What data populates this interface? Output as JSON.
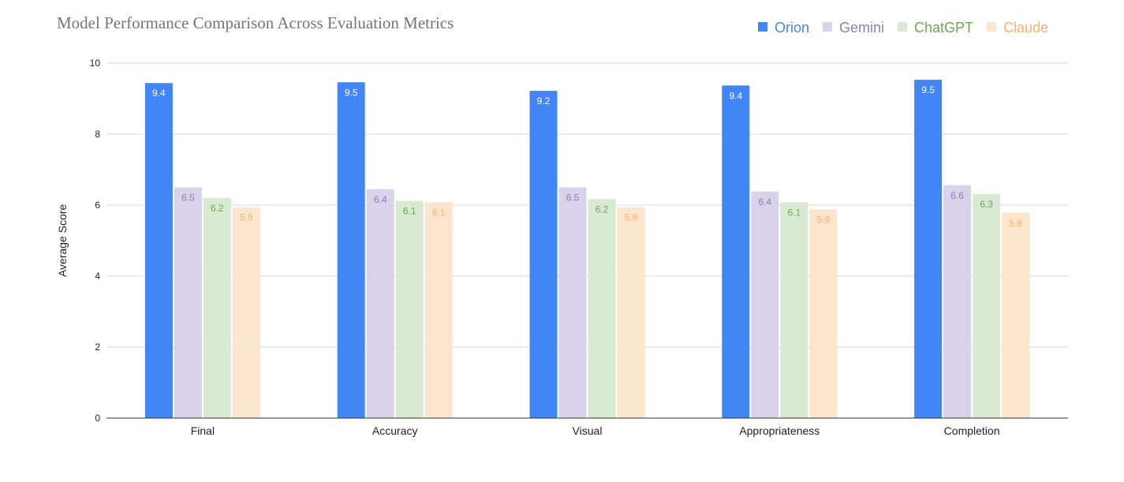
{
  "chart_data": {
    "type": "bar",
    "title": "Model Performance Comparison Across Evaluation Metrics",
    "xlabel": "",
    "ylabel": "Average Score",
    "ylim": [
      0,
      10
    ],
    "yticks": [
      0,
      2,
      4,
      6,
      8,
      10
    ],
    "grid": true,
    "legend_position": "top-right",
    "categories": [
      "Final",
      "Accuracy",
      "Visual",
      "Appropriateness",
      "Completion"
    ],
    "series": [
      {
        "name": "Orion",
        "color": "#4285f4",
        "label_color": "#ffffff",
        "values": [
          9.44,
          9.46,
          9.22,
          9.37,
          9.53
        ],
        "labels": [
          "9.4",
          "9.5",
          "9.2",
          "9.4",
          "9.5"
        ]
      },
      {
        "name": "Gemini",
        "color": "#d9d2e9",
        "label_color": "#8e7cc3",
        "values": [
          6.5,
          6.45,
          6.5,
          6.38,
          6.56
        ],
        "labels": [
          "6.5",
          "6.4",
          "6.5",
          "6.4",
          "6.6"
        ]
      },
      {
        "name": "ChatGPT",
        "color": "#d9ead3",
        "label_color": "#6aa84f",
        "values": [
          6.2,
          6.12,
          6.17,
          6.08,
          6.31
        ],
        "labels": [
          "6.2",
          "6.1",
          "6.2",
          "6.1",
          "6.3"
        ]
      },
      {
        "name": "Claude",
        "color": "#fce5cd",
        "label_color": "#f6b26b",
        "values": [
          5.94,
          6.08,
          5.94,
          5.88,
          5.78
        ],
        "labels": [
          "5.9",
          "6.1",
          "5.9",
          "5.9",
          "5.8"
        ]
      }
    ],
    "legend_text_colors": {
      "Orion": "#4285f4",
      "Gemini": "#8e7cc3",
      "ChatGPT": "#6aa84f",
      "Claude": "#f6b26b"
    }
  }
}
